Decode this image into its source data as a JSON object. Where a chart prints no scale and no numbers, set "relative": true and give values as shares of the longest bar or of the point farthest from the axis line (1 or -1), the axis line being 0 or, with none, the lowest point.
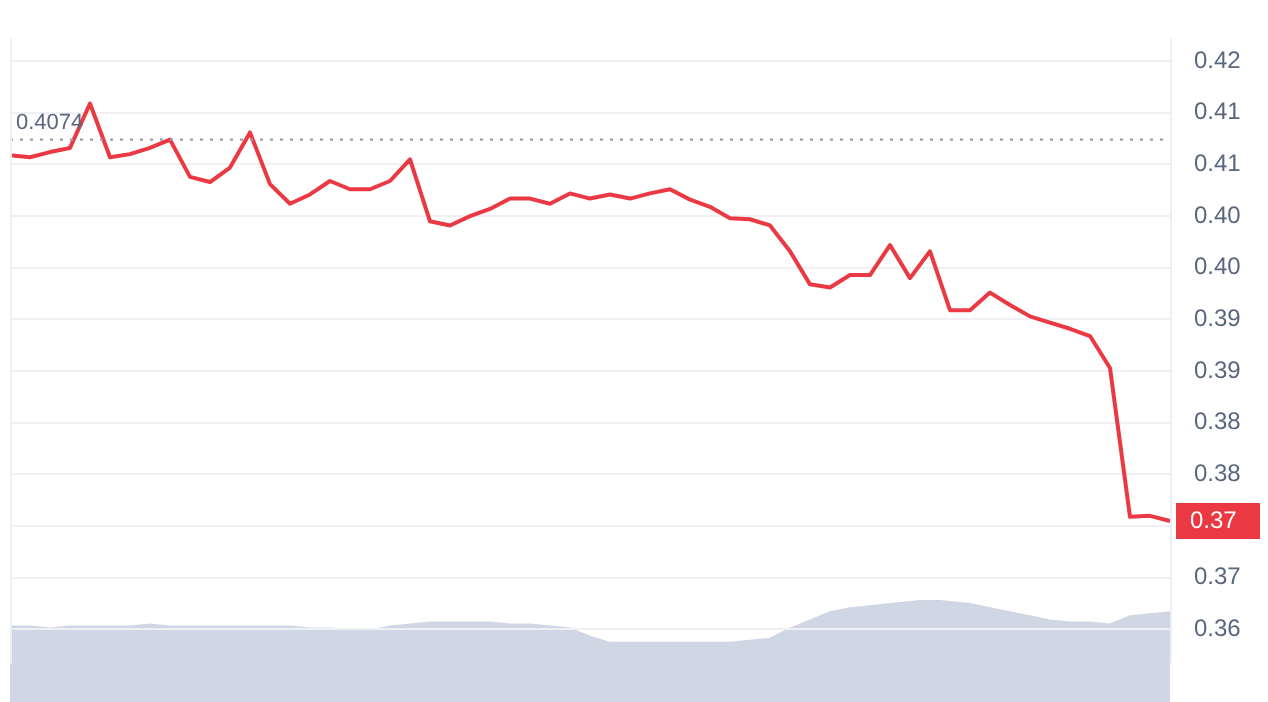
{
  "chart_data": [
    {
      "type": "line",
      "categories": [
        null,
        null,
        null,
        null,
        null,
        null,
        null,
        null,
        null,
        null,
        null,
        null,
        null,
        null,
        null,
        null,
        null,
        null,
        null,
        null,
        null,
        null,
        null,
        null,
        null,
        null,
        null,
        null,
        null,
        null,
        null,
        null,
        null,
        null,
        null,
        null,
        null,
        null,
        null,
        null,
        null,
        null,
        null,
        null,
        null,
        null,
        null,
        null,
        null,
        null,
        null,
        null,
        null,
        null,
        null,
        null,
        null,
        null,
        null
      ],
      "series": [
        {
          "color": "#ea3943",
          "values": [
            0.4059,
            0.4057,
            0.4062,
            0.4066,
            0.4109,
            0.4057,
            0.406,
            0.4066,
            0.4074,
            0.4038,
            0.4033,
            0.4047,
            0.4081,
            0.4031,
            0.4012,
            0.4021,
            0.4034,
            0.4026,
            0.4026,
            0.4034,
            0.4055,
            0.3995,
            0.3991,
            0.4,
            0.4007,
            0.4017,
            0.4017,
            0.4012,
            0.4022,
            0.4017,
            0.4021,
            0.4017,
            0.4022,
            0.4026,
            0.4016,
            0.4009,
            0.3998,
            0.3997,
            0.3991,
            0.3966,
            0.3934,
            0.3931,
            0.3943,
            0.3943,
            0.3972,
            0.394,
            0.3966,
            0.3909,
            0.3909,
            0.3926,
            0.3914,
            0.3903,
            0.3897,
            0.3891,
            0.3884,
            0.3853,
            0.3709,
            0.371,
            0.3705
          ]
        }
      ],
      "ylim": [
        0.3567,
        0.4172
      ],
      "yticks": [
        {
          "value": 0.415,
          "label": "0.42"
        },
        {
          "value": 0.41,
          "label": "0.41"
        },
        {
          "value": 0.405,
          "label": "0.41"
        },
        {
          "value": 0.4,
          "label": "0.40"
        },
        {
          "value": 0.395,
          "label": "0.40"
        },
        {
          "value": 0.39,
          "label": "0.39"
        },
        {
          "value": 0.385,
          "label": "0.39"
        },
        {
          "value": 0.38,
          "label": "0.38"
        },
        {
          "value": 0.375,
          "label": "0.38"
        },
        {
          "value": 0.37,
          "label": null
        },
        {
          "value": 0.365,
          "label": "0.37"
        },
        {
          "value": 0.36,
          "label": "0.36"
        }
      ],
      "ref_lines": [
        {
          "axis": "y",
          "value": 0.4074,
          "label": "0.4074",
          "color": "#9aa1ad",
          "line_style": "dotted"
        }
      ],
      "annotations": [
        "0.37"
      ],
      "grid": "y",
      "tick_labels": "y",
      "legend": false,
      "marker": "none"
    },
    {
      "type": "area",
      "relative": true,
      "categories": [
        null,
        null,
        null,
        null,
        null,
        null,
        null,
        null,
        null,
        null,
        null,
        null,
        null,
        null,
        null,
        null,
        null,
        null,
        null,
        null,
        null,
        null,
        null,
        null,
        null,
        null,
        null,
        null,
        null,
        null,
        null,
        null,
        null,
        null,
        null,
        null,
        null,
        null,
        null,
        null,
        null,
        null,
        null,
        null,
        null,
        null,
        null,
        null,
        null,
        null,
        null,
        null,
        null,
        null,
        null,
        null,
        null,
        null,
        null
      ],
      "series": [
        {
          "color": "#cfd6e4",
          "values": [
            0.74,
            0.74,
            0.72,
            0.74,
            0.74,
            0.74,
            0.74,
            0.76,
            0.74,
            0.74,
            0.74,
            0.74,
            0.74,
            0.74,
            0.74,
            0.72,
            0.72,
            0.7,
            0.7,
            0.74,
            0.76,
            0.78,
            0.78,
            0.78,
            0.78,
            0.76,
            0.76,
            0.74,
            0.72,
            0.64,
            0.58,
            0.58,
            0.58,
            0.58,
            0.58,
            0.58,
            0.58,
            0.6,
            0.62,
            0.72,
            0.8,
            0.88,
            0.92,
            0.94,
            0.96,
            0.98,
            1,
            0.98,
            0.96,
            0.92,
            0.88,
            0.84,
            0.8,
            0.78,
            0.78,
            0.76,
            0.84,
            0.86,
            0.88
          ]
        }
      ],
      "tick_labels": false,
      "legend": false
    }
  ]
}
